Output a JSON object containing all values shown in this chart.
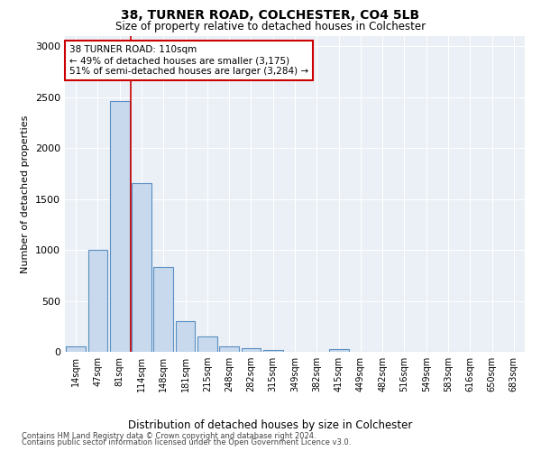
{
  "title1": "38, TURNER ROAD, COLCHESTER, CO4 5LB",
  "title2": "Size of property relative to detached houses in Colchester",
  "xlabel": "Distribution of detached houses by size in Colchester",
  "ylabel": "Number of detached properties",
  "categories": [
    "14sqm",
    "47sqm",
    "81sqm",
    "114sqm",
    "148sqm",
    "181sqm",
    "215sqm",
    "248sqm",
    "282sqm",
    "315sqm",
    "349sqm",
    "382sqm",
    "415sqm",
    "449sqm",
    "482sqm",
    "516sqm",
    "549sqm",
    "583sqm",
    "616sqm",
    "650sqm",
    "683sqm"
  ],
  "values": [
    55,
    1000,
    2460,
    1660,
    835,
    300,
    150,
    55,
    35,
    20,
    0,
    0,
    30,
    0,
    0,
    0,
    0,
    0,
    0,
    0,
    0
  ],
  "bar_color": "#c8d9ed",
  "bar_edge_color": "#5a8fc2",
  "vline_color": "#cc0000",
  "annotation_text": "38 TURNER ROAD: 110sqm\n← 49% of detached houses are smaller (3,175)\n51% of semi-detached houses are larger (3,284) →",
  "annotation_box_color": "#ffffff",
  "annotation_box_edge": "#cc0000",
  "ylim": [
    0,
    3100
  ],
  "yticks": [
    0,
    500,
    1000,
    1500,
    2000,
    2500,
    3000
  ],
  "footer1": "Contains HM Land Registry data © Crown copyright and database right 2024.",
  "footer2": "Contains public sector information licensed under the Open Government Licence v3.0.",
  "bg_color": "#eaf0f6"
}
